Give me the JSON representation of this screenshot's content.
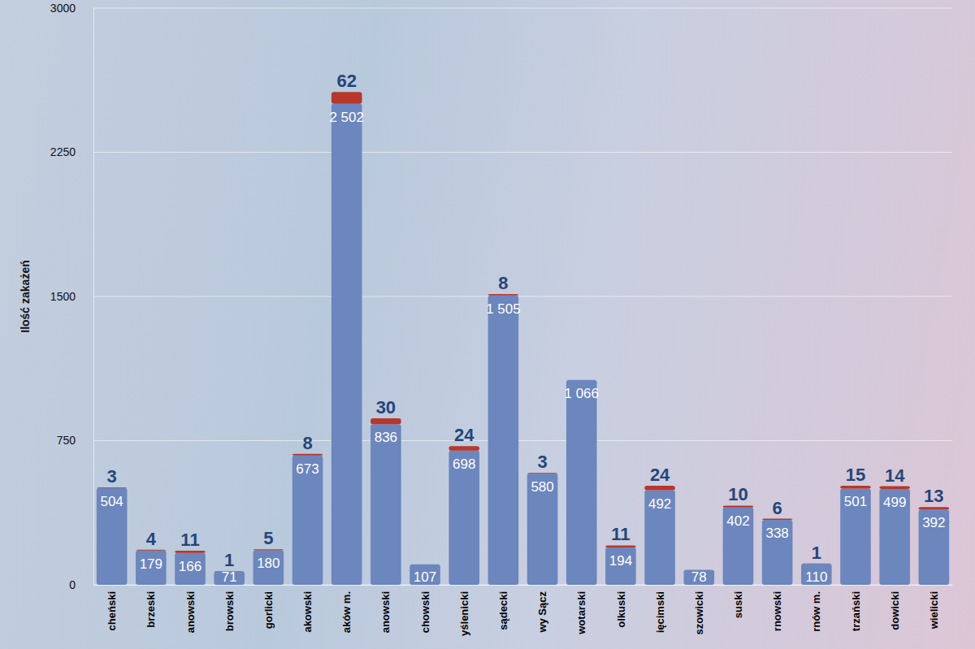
{
  "chart_data": {
    "type": "bar",
    "stacked": true,
    "data_labels": true,
    "grid": true,
    "y_label": "Ilość zakażeń",
    "categories": [
      "cheński",
      "brzeski",
      "anowski",
      "browski",
      "gorlicki",
      "akowski",
      "aków m.",
      "anowski",
      "chowski",
      "yślenicki",
      "sądecki",
      "wy Sącz",
      "wotarski",
      "olkuski",
      "ięcimski",
      "szowicki",
      "suski",
      "rnowski",
      "rnów m.",
      "trzański",
      "dowicki",
      "wielicki"
    ],
    "series": [
      {
        "color": "#6c86be",
        "values": [
          504,
          179,
          166,
          71,
          180,
          673,
          2502,
          836,
          107,
          698,
          1505,
          580,
          1066,
          194,
          492,
          78,
          402,
          338,
          110,
          501,
          499,
          392
        ],
        "value_labels": [
          "504",
          "179",
          "166",
          "71",
          "180",
          "673",
          "2 502",
          "836",
          "107",
          "698",
          "1 505",
          "580",
          "1 066",
          "194",
          "492",
          "78",
          "402",
          "338",
          "110",
          "501",
          "499",
          "392"
        ]
      },
      {
        "color": "#b8372b",
        "values": [
          3,
          4,
          11,
          1,
          5,
          8,
          62,
          30,
          null,
          24,
          8,
          3,
          null,
          11,
          24,
          null,
          10,
          6,
          1,
          15,
          14,
          13
        ]
      }
    ],
    "ylim": [
      0,
      3000
    ],
    "yticks": [
      0,
      750,
      1500,
      2250,
      3000
    ]
  }
}
